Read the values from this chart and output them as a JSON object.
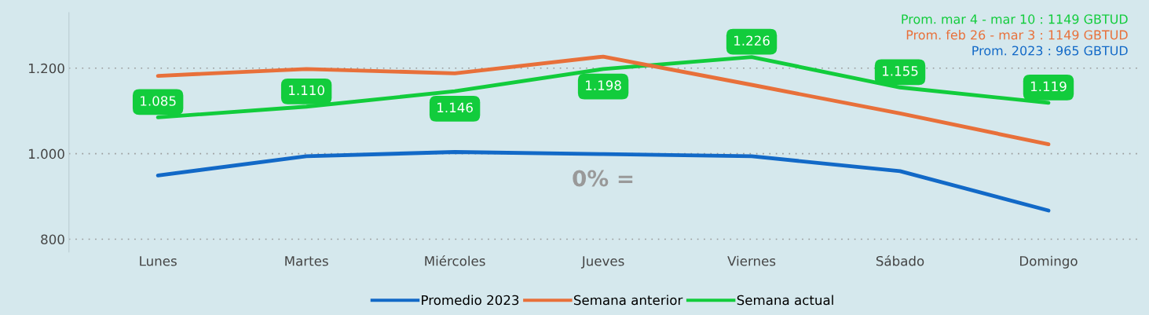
{
  "chart_data": {
    "type": "line",
    "categories": [
      "Lunes",
      "Martes",
      "Miércoles",
      "Jueves",
      "Viernes",
      "Sábado",
      "Domingo"
    ],
    "series": [
      {
        "name": "Promedio 2023",
        "color": "#1269c7",
        "values": [
          949,
          994,
          1004,
          999,
          994,
          959,
          867
        ]
      },
      {
        "name": "Semana anterior",
        "color": "#e8703a",
        "values": [
          1182,
          1198,
          1188,
          1227,
          1161,
          1094,
          1022
        ]
      },
      {
        "name": "Semana actual",
        "color": "#12cc3c",
        "values": [
          1085,
          1110,
          1146,
          1198,
          1226,
          1155,
          1119
        ],
        "value_labels": [
          "1.085",
          "1.110",
          "1.146",
          "1.198",
          "1.226",
          "1.155",
          "1.119"
        ]
      }
    ],
    "ylim": [
      770,
      1330
    ],
    "yticks": [
      {
        "value": 800,
        "label": "800"
      },
      {
        "value": 1000,
        "label": "1.000"
      },
      {
        "value": 1200,
        "label": "1.200"
      }
    ],
    "grid": "y",
    "legend": "bottom",
    "marker": "none",
    "line_style": "solid",
    "annotations": [
      "Prom. mar 4 - mar 10 : 1149 GBTUD",
      "Prom. feb 26 - mar 3 : 1149 GBTUD",
      "Prom. 2023 : 965 GBTUD",
      "0% ="
    ]
  }
}
